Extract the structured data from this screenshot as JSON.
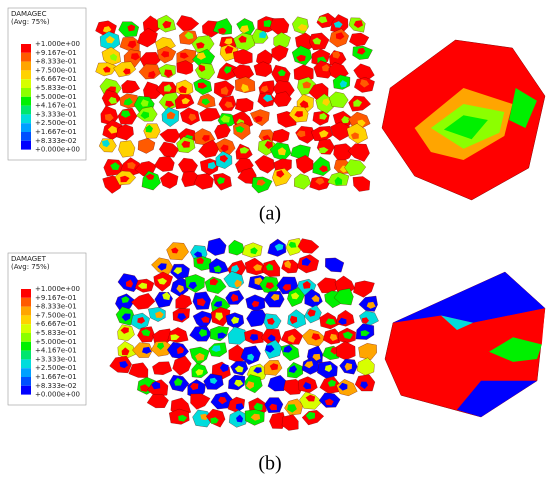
{
  "panels": [
    {
      "legend": {
        "title": "DAMAGEC",
        "subtitle": "(Avg: 75%)",
        "labels": [
          "+1.000e+00",
          "+9.167e-01",
          "+8.333e-01",
          "+7.500e-01",
          "+6.667e-01",
          "+5.833e-01",
          "+5.000e-01",
          "+4.167e-01",
          "+3.333e-01",
          "+2.500e-01",
          "+1.667e-01",
          "+8.333e-02",
          "+0.000e+00"
        ]
      },
      "caption": "(a)"
    },
    {
      "legend": {
        "title": "DAMAGET",
        "subtitle": "(Avg: 75%)",
        "labels": [
          "+1.000e+00",
          "+9.167e-01",
          "+8.333e-01",
          "+7.500e-01",
          "+6.667e-01",
          "+5.833e-01",
          "+5.000e-01",
          "+4.167e-01",
          "+3.333e-01",
          "+2.500e-01",
          "+1.667e-01",
          "+8.333e-02",
          "+0.000e+00"
        ]
      },
      "caption": "(b)"
    }
  ]
}
